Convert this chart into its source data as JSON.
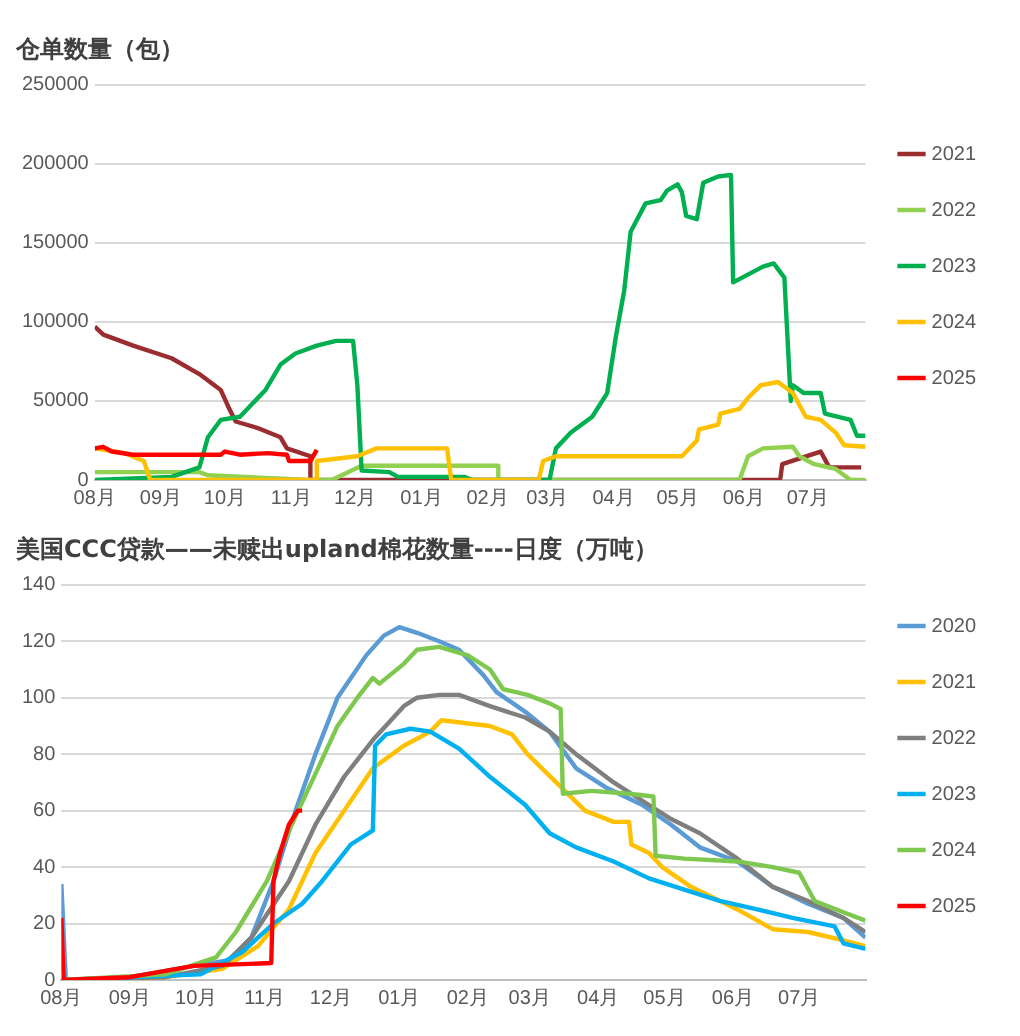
{
  "chart_data": [
    {
      "type": "line",
      "title": "仓单数量（包）",
      "xlim": [
        "2024-08-01",
        "2025-07-28"
      ],
      "xticks": [
        {
          "value": "2024-08-01",
          "label": "08月"
        },
        {
          "value": "2024-09-01",
          "label": "09月"
        },
        {
          "value": "2024-10-01",
          "label": "10月"
        },
        {
          "value": "2024-11-01",
          "label": "11月"
        },
        {
          "value": "2024-12-01",
          "label": "12月"
        },
        {
          "value": "2025-01-01",
          "label": "01月"
        },
        {
          "value": "2025-02-01",
          "label": "02月"
        },
        {
          "value": "2025-03-01",
          "label": "03月"
        },
        {
          "value": "2025-04-01",
          "label": "04月"
        },
        {
          "value": "2025-05-01",
          "label": "05月"
        },
        {
          "value": "2025-06-01",
          "label": "06月"
        },
        {
          "value": "2025-07-01",
          "label": "07月"
        }
      ],
      "ylim": [
        0,
        250000
      ],
      "yticks": [
        0,
        50000,
        100000,
        150000,
        200000,
        250000
      ],
      "grid": "y",
      "legend": "right",
      "marker": "none",
      "line_style": "solid",
      "series": [
        {
          "name": "2021",
          "color": "#9b2d30",
          "x": [
            "2024-08-01",
            "2024-08-05",
            "2024-08-19",
            "2024-09-06",
            "2024-09-19",
            "2024-09-29",
            "2024-10-03",
            "2024-10-06",
            "2024-10-16",
            "2024-10-27",
            "2024-10-30",
            "2024-11-10",
            "2024-11-10",
            "2025-06-18",
            "2025-06-19",
            "2025-07-07",
            "2025-07-11",
            "2025-07-26"
          ],
          "values": [
            97000,
            92000,
            85000,
            77000,
            67000,
            57000,
            45000,
            37000,
            33000,
            27000,
            20000,
            15000,
            0,
            0,
            10000,
            18000,
            8000,
            8000
          ]
        },
        {
          "name": "2022",
          "color": "#92d050",
          "x": [
            "2024-08-01",
            "2024-09-19",
            "2024-09-23",
            "2024-11-10",
            "2024-11-20",
            "2024-12-04",
            "2025-02-06",
            "2025-02-06",
            "2025-05-30",
            "2025-06-03",
            "2025-06-10",
            "2025-06-24",
            "2025-06-27",
            "2025-07-04",
            "2025-07-14",
            "2025-07-21",
            "2025-07-28"
          ],
          "values": [
            5000,
            5000,
            3000,
            0,
            0,
            9000,
            9000,
            0,
            0,
            15000,
            20000,
            21000,
            15000,
            10000,
            7000,
            0,
            0
          ]
        },
        {
          "name": "2023",
          "color": "#00b050",
          "x": [
            "2024-08-01",
            "2024-09-06",
            "2024-09-19",
            "2024-09-23",
            "2024-09-29",
            "2024-10-08",
            "2024-10-20",
            "2024-10-27",
            "2024-11-03",
            "2024-11-13",
            "2024-11-22",
            "2024-11-30",
            "2024-12-02",
            "2024-12-04",
            "2024-12-17",
            "2024-12-21",
            "2025-01-21",
            "2025-01-25",
            "2025-03-02",
            "2025-03-05",
            "2025-03-12",
            "2025-03-22",
            "2025-03-29",
            "2025-04-02",
            "2025-04-06",
            "2025-04-09",
            "2025-04-16",
            "2025-04-23",
            "2025-04-26",
            "2025-05-01",
            "2025-05-03",
            "2025-05-05",
            "2025-05-10",
            "2025-05-13",
            "2025-05-20",
            "2025-05-26",
            "2025-05-27",
            "2025-06-10",
            "2025-06-15",
            "2025-06-20",
            "2025-06-23",
            "2025-06-24",
            "2025-06-29",
            "2025-07-07",
            "2025-07-09",
            "2025-07-21",
            "2025-07-24",
            "2025-07-28"
          ],
          "values": [
            0,
            2000,
            8000,
            27000,
            38000,
            40000,
            57000,
            73000,
            80000,
            85000,
            88000,
            88000,
            60000,
            6000,
            5000,
            2000,
            2000,
            0,
            0,
            20000,
            30000,
            40000,
            55000,
            90000,
            120000,
            157000,
            175000,
            177000,
            183000,
            187000,
            182000,
            167000,
            165000,
            188000,
            192000,
            193000,
            125000,
            135000,
            137000,
            128000,
            50000,
            60000,
            55000,
            55000,
            42000,
            38000,
            28000,
            28000
          ]
        },
        {
          "name": "2024",
          "color": "#ffc000",
          "x": [
            "2024-08-01",
            "2024-08-15",
            "2024-08-24",
            "2024-08-27",
            "2024-11-13",
            "2024-11-13",
            "2024-12-02",
            "2024-12-11",
            "2025-01-13",
            "2025-01-15",
            "2025-02-25",
            "2025-02-27",
            "2025-03-05",
            "2025-05-03",
            "2025-05-10",
            "2025-05-11",
            "2025-05-20",
            "2025-05-21",
            "2025-05-30",
            "2025-06-03",
            "2025-06-09",
            "2025-06-17",
            "2025-06-24",
            "2025-06-30",
            "2025-07-07",
            "2025-07-14",
            "2025-07-18",
            "2025-07-28"
          ],
          "values": [
            20000,
            17000,
            12000,
            0,
            0,
            12000,
            15000,
            20000,
            20000,
            0,
            0,
            12000,
            15000,
            15000,
            25000,
            32000,
            35000,
            42000,
            45000,
            52000,
            60000,
            62000,
            55000,
            40000,
            38000,
            30000,
            22000,
            21000
          ]
        },
        {
          "name": "2025",
          "color": "#ff0000",
          "x": [
            "2024-08-01",
            "2024-08-05",
            "2024-08-09",
            "2024-08-19",
            "2024-09-29",
            "2024-10-01",
            "2024-10-08",
            "2024-10-21",
            "2024-10-30",
            "2024-10-31",
            "2024-11-10",
            "2024-11-13"
          ],
          "values": [
            20000,
            21000,
            18000,
            16000,
            16000,
            18000,
            16000,
            17000,
            16000,
            12000,
            12000,
            19000
          ]
        }
      ]
    },
    {
      "type": "line",
      "title": "美国CCC贷款——未赎出upland棉花数量----日度（万吨）",
      "xlim": [
        "2024-08-01",
        "2025-07-31"
      ],
      "xticks": [
        {
          "value": "2024-08-01",
          "label": "08月"
        },
        {
          "value": "2024-09-01",
          "label": "09月"
        },
        {
          "value": "2024-10-01",
          "label": "10月"
        },
        {
          "value": "2024-11-01",
          "label": "11月"
        },
        {
          "value": "2024-12-01",
          "label": "12月"
        },
        {
          "value": "2025-01-01",
          "label": "01月"
        },
        {
          "value": "2025-02-01",
          "label": "02月"
        },
        {
          "value": "2025-03-01",
          "label": "03月"
        },
        {
          "value": "2025-04-01",
          "label": "04月"
        },
        {
          "value": "2025-05-01",
          "label": "05月"
        },
        {
          "value": "2025-06-01",
          "label": "06月"
        },
        {
          "value": "2025-07-01",
          "label": "07月"
        }
      ],
      "ylim": [
        0,
        140
      ],
      "yticks": [
        0,
        20,
        40,
        60,
        80,
        100,
        120,
        140
      ],
      "grid": "y",
      "legend": "right",
      "marker": "none",
      "line_style": "solid",
      "series": [
        {
          "name": "2020",
          "color": "#5b9bd5",
          "x": [
            "2024-08-01",
            "2024-08-03",
            "2024-09-01",
            "2024-09-30",
            "2024-10-16",
            "2024-10-26",
            "2024-11-05",
            "2024-11-15",
            "2024-11-24",
            "2024-12-04",
            "2024-12-17",
            "2024-12-25",
            "2025-01-01",
            "2025-01-09",
            "2025-01-19",
            "2025-01-28",
            "2025-02-08",
            "2025-02-14",
            "2025-02-27",
            "2025-03-10",
            "2025-03-22",
            "2025-04-05",
            "2025-04-21",
            "2025-05-04",
            "2025-05-17",
            "2025-06-03",
            "2025-06-19",
            "2025-07-05",
            "2025-07-21",
            "2025-07-31"
          ],
          "values": [
            34,
            0,
            1,
            5,
            7,
            15,
            35,
            60,
            80,
            100,
            115,
            122,
            125,
            123,
            120,
            117,
            108,
            102,
            95,
            88,
            75,
            68,
            62,
            55,
            47,
            42,
            33,
            27,
            22,
            15
          ]
        },
        {
          "name": "2021",
          "color": "#ffc000",
          "x": [
            "2024-08-01",
            "2024-09-17",
            "2024-10-13",
            "2024-10-29",
            "2024-11-12",
            "2024-11-24",
            "2024-12-07",
            "2024-12-20",
            "2025-01-03",
            "2025-01-15",
            "2025-01-20",
            "2025-02-11",
            "2025-02-21",
            "2025-02-28",
            "2025-03-13",
            "2025-03-26",
            "2025-04-08",
            "2025-04-15",
            "2025-04-16",
            "2025-04-24",
            "2025-04-30",
            "2025-05-13",
            "2025-06-03",
            "2025-06-19",
            "2025-07-05",
            "2025-07-21",
            "2025-07-31"
          ],
          "values": [
            0,
            1,
            4,
            12,
            25,
            45,
            60,
            75,
            83,
            88,
            92,
            90,
            87,
            80,
            70,
            60,
            56,
            56,
            48,
            45,
            40,
            33,
            25,
            18,
            17,
            14,
            12
          ]
        },
        {
          "name": "2022",
          "color": "#7f7f7f",
          "x": [
            "2024-08-01",
            "2024-09-17",
            "2024-10-13",
            "2024-10-26",
            "2024-11-12",
            "2024-11-24",
            "2024-12-07",
            "2024-12-20",
            "2025-01-03",
            "2025-01-09",
            "2025-01-19",
            "2025-01-28",
            "2025-02-11",
            "2025-02-27",
            "2025-03-10",
            "2025-03-22",
            "2025-04-08",
            "2025-04-24",
            "2025-05-04",
            "2025-05-17",
            "2025-06-03",
            "2025-06-19",
            "2025-07-05",
            "2025-07-21",
            "2025-07-31"
          ],
          "values": [
            0,
            1,
            5,
            15,
            35,
            55,
            72,
            85,
            97,
            100,
            101,
            101,
            97,
            93,
            88,
            80,
            70,
            62,
            57,
            52,
            43,
            33,
            28,
            22,
            17
          ]
        },
        {
          "name": "2023",
          "color": "#00b0f0",
          "x": [
            "2024-08-01",
            "2024-10-03",
            "2024-10-22",
            "2024-11-05",
            "2024-11-18",
            "2024-11-27",
            "2024-12-10",
            "2024-12-20",
            "2024-12-21",
            "2024-12-26",
            "2025-01-06",
            "2025-01-15",
            "2025-01-28",
            "2025-02-11",
            "2025-02-27",
            "2025-03-10",
            "2025-03-22",
            "2025-04-08",
            "2025-04-24",
            "2025-05-10",
            "2025-05-26",
            "2025-06-12",
            "2025-06-28",
            "2025-07-17",
            "2025-07-21",
            "2025-07-31"
          ],
          "values": [
            0,
            2,
            10,
            20,
            27,
            35,
            48,
            53,
            83,
            87,
            89,
            88,
            82,
            72,
            62,
            52,
            47,
            42,
            36,
            32,
            28,
            25,
            22,
            19,
            13,
            11
          ]
        },
        {
          "name": "2024",
          "color": "#7ec850",
          "x": [
            "2024-08-01",
            "2024-09-17",
            "2024-10-10",
            "2024-10-19",
            "2024-11-02",
            "2024-11-15",
            "2024-11-24",
            "2024-12-04",
            "2024-12-13",
            "2024-12-20",
            "2024-12-23",
            "2025-01-03",
            "2025-01-09",
            "2025-01-19",
            "2025-02-01",
            "2025-02-11",
            "2025-02-17",
            "2025-02-28",
            "2025-03-10",
            "2025-03-15",
            "2025-03-16",
            "2025-03-29",
            "2025-04-15",
            "2025-04-26",
            "2025-04-27",
            "2025-05-10",
            "2025-06-03",
            "2025-06-19",
            "2025-07-01",
            "2025-07-08",
            "2025-07-21",
            "2025-07-31"
          ],
          "values": [
            0,
            2,
            8,
            17,
            35,
            58,
            73,
            90,
            100,
            107,
            105,
            112,
            117,
            118,
            115,
            110,
            103,
            101,
            98,
            96,
            66,
            67,
            66,
            65,
            44,
            43,
            42,
            40,
            38,
            28,
            24,
            21
          ]
        },
        {
          "name": "2025",
          "color": "#ff0000",
          "x": [
            "2024-08-01",
            "2024-08-02",
            "2024-09-01",
            "2024-09-30",
            "2024-11-04",
            "2024-11-05",
            "2024-11-08",
            "2024-11-12",
            "2024-11-16",
            "2024-11-18"
          ],
          "values": [
            22,
            0,
            1,
            5,
            6,
            35,
            45,
            55,
            60,
            60
          ]
        }
      ]
    }
  ]
}
